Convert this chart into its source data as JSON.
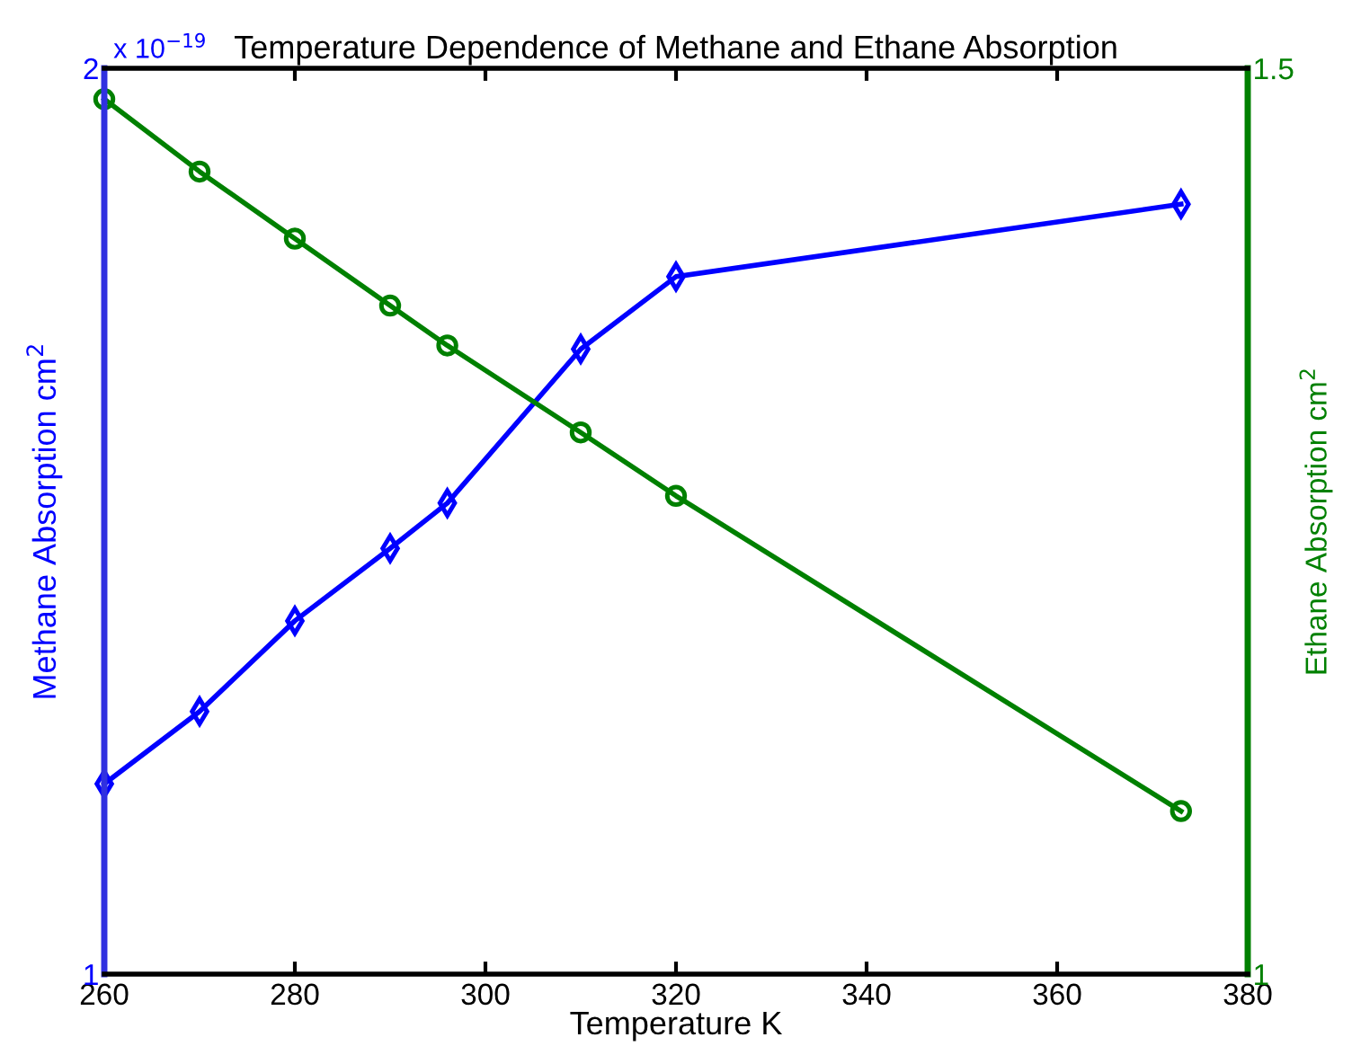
{
  "chart_data": {
    "type": "line",
    "title": "Temperature Dependence of Methane and Ethane Absorption",
    "xlabel": "Temperature K",
    "ylabel": "Methane Absorption cm$^{2}$",
    "y2label": "Ethane Absorption cm$^{2}$",
    "annotations": [
      "x 10$^{−19}$"
    ],
    "x": [
      260,
      270,
      280,
      290,
      296,
      310,
      320,
      373
    ],
    "series": [
      {
        "color": "#0000ff",
        "marker": "diamond",
        "values": [
          1.21,
          1.29,
          1.39,
          1.47,
          1.52,
          1.69,
          1.77,
          1.85
        ]
      },
      {
        "color": "#008000",
        "marker": "circle",
        "axis": "y2",
        "values": [
          1.483,
          1.443,
          1.406,
          1.369,
          1.347,
          1.299,
          1.264,
          1.09
        ]
      }
    ],
    "xlim": [
      260,
      380
    ],
    "xticks": [
      260,
      280,
      300,
      320,
      340,
      360,
      380
    ],
    "ylim": [
      1,
      2
    ],
    "yticks": [
      1,
      2
    ],
    "y2lim": [
      1,
      1.5
    ],
    "y2ticks": [
      1,
      1.5
    ],
    "grid": false,
    "legend": false,
    "line_style": "solid"
  }
}
